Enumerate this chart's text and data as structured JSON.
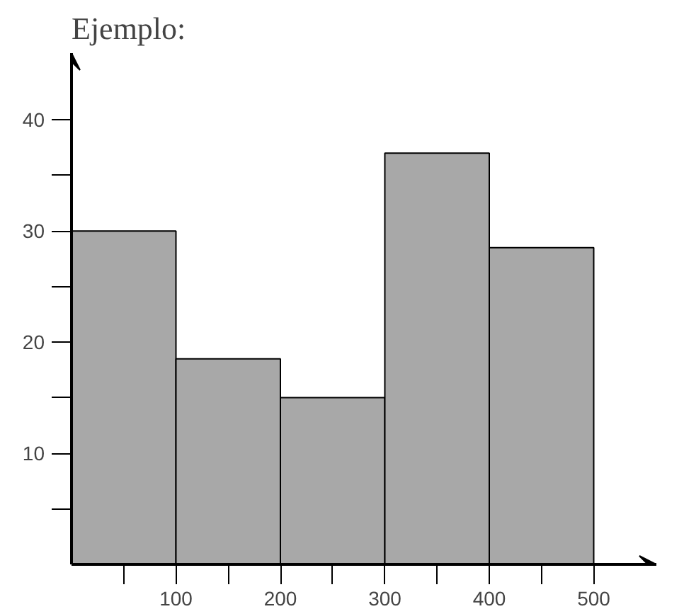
{
  "chart_data": {
    "type": "histogram",
    "title": "Ejemplo:",
    "bins": [
      0,
      100,
      200,
      300,
      400,
      500
    ],
    "values": [
      30,
      18.5,
      15,
      37,
      28.5
    ],
    "color": "#a8a8a8",
    "xlim": [
      0,
      560
    ],
    "ylim": [
      0,
      46
    ],
    "xticks": [
      {
        "value": 50,
        "label": null
      },
      100,
      {
        "value": 150,
        "label": null
      },
      200,
      {
        "value": 250,
        "label": null
      },
      300,
      {
        "value": 350,
        "label": null
      },
      400,
      {
        "value": 450,
        "label": null
      },
      500
    ],
    "yticks": [
      {
        "value": 5,
        "label": null
      },
      10,
      {
        "value": 15,
        "label": null
      },
      20,
      {
        "value": 25,
        "label": null
      },
      30,
      {
        "value": 35,
        "label": null
      },
      40
    ],
    "grid": false
  }
}
